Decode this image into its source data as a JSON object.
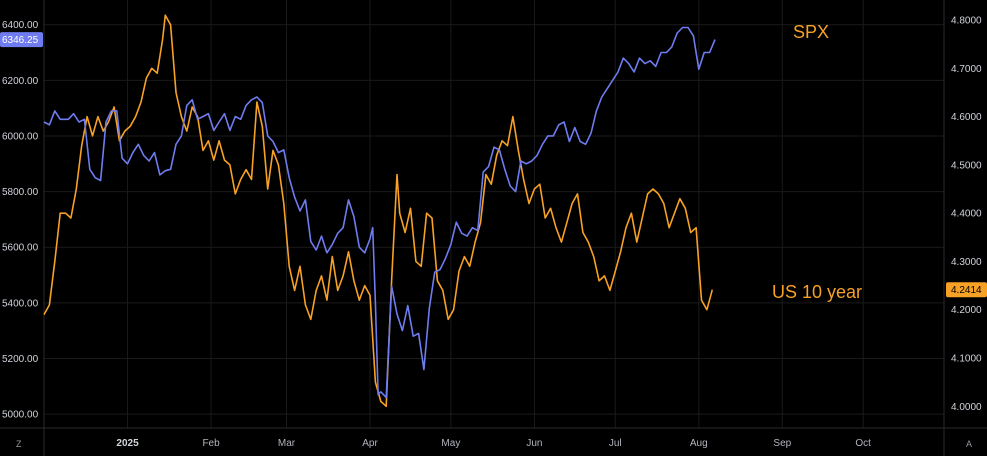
{
  "chart_data": {
    "type": "line",
    "annotations": {
      "spx": "SPX",
      "us10y": "US 10 year"
    },
    "colors": {
      "spx": "#6f7cf0",
      "us10y": "#f7a125",
      "grid": "#1a1a1a",
      "background": "#000000"
    },
    "left_axis": {
      "ylim": [
        4950,
        6460
      ],
      "ticks": [
        "6400.00",
        "6200.00",
        "6000.00",
        "5800.00",
        "5600.00",
        "5400.00",
        "5200.00",
        "5000.00"
      ],
      "tick_values": [
        6400,
        6200,
        6000,
        5800,
        5600,
        5400,
        5200,
        5000
      ]
    },
    "right_axis": {
      "ylim": [
        3.955,
        4.825
      ],
      "ticks": [
        "4.8000",
        "4.7000",
        "4.6000",
        "4.5000",
        "4.4000",
        "4.3000",
        "4.2000",
        "4.1000",
        "4.0000"
      ],
      "tick_values": [
        4.8,
        4.7,
        4.6,
        4.5,
        4.4,
        4.3,
        4.2,
        4.1,
        4.0
      ]
    },
    "x_axis": {
      "range": [
        "2024-12-01",
        "2025-10-31"
      ],
      "ticks": [
        {
          "label": "2025",
          "date": "2025-01-01",
          "bold": true
        },
        {
          "label": "Feb",
          "date": "2025-02-01"
        },
        {
          "label": "Mar",
          "date": "2025-03-01"
        },
        {
          "label": "Apr",
          "date": "2025-04-01"
        },
        {
          "label": "May",
          "date": "2025-05-01"
        },
        {
          "label": "Jun",
          "date": "2025-06-01"
        },
        {
          "label": "Jul",
          "date": "2025-07-01"
        },
        {
          "label": "Aug",
          "date": "2025-08-01"
        },
        {
          "label": "Sep",
          "date": "2025-09-01"
        },
        {
          "label": "Oct",
          "date": "2025-10-01"
        }
      ]
    },
    "last_values": {
      "spx": "6346.25",
      "us10y": "4.2414",
      "spx_value": 6346.25,
      "us10y_value": 4.2414
    },
    "series": [
      {
        "key": "spx",
        "axis": "left",
        "points": [
          [
            "2024-12-01",
            6050
          ],
          [
            "2024-12-03",
            6040
          ],
          [
            "2024-12-05",
            6090
          ],
          [
            "2024-12-07",
            6060
          ],
          [
            "2024-12-10",
            6060
          ],
          [
            "2024-12-12",
            6080
          ],
          [
            "2024-12-14",
            6050
          ],
          [
            "2024-12-16",
            6060
          ],
          [
            "2024-12-18",
            5880
          ],
          [
            "2024-12-20",
            5850
          ],
          [
            "2024-12-22",
            5840
          ],
          [
            "2024-12-24",
            6050
          ],
          [
            "2024-12-26",
            6090
          ],
          [
            "2024-12-28",
            6090
          ],
          [
            "2024-12-30",
            5920
          ],
          [
            "2025-01-01",
            5900
          ],
          [
            "2025-01-03",
            5940
          ],
          [
            "2025-01-05",
            5970
          ],
          [
            "2025-01-07",
            5930
          ],
          [
            "2025-01-09",
            5910
          ],
          [
            "2025-01-11",
            5940
          ],
          [
            "2025-01-13",
            5860
          ],
          [
            "2025-01-15",
            5875
          ],
          [
            "2025-01-17",
            5880
          ],
          [
            "2025-01-19",
            5970
          ],
          [
            "2025-01-21",
            6000
          ],
          [
            "2025-01-23",
            6110
          ],
          [
            "2025-01-25",
            6130
          ],
          [
            "2025-01-27",
            6060
          ],
          [
            "2025-01-29",
            6070
          ],
          [
            "2025-01-31",
            6080
          ],
          [
            "2025-02-02",
            6020
          ],
          [
            "2025-02-04",
            6050
          ],
          [
            "2025-02-06",
            6080
          ],
          [
            "2025-02-08",
            6020
          ],
          [
            "2025-02-10",
            6070
          ],
          [
            "2025-02-12",
            6060
          ],
          [
            "2025-02-14",
            6110
          ],
          [
            "2025-02-16",
            6130
          ],
          [
            "2025-02-18",
            6140
          ],
          [
            "2025-02-20",
            6120
          ],
          [
            "2025-02-22",
            6000
          ],
          [
            "2025-02-24",
            5980
          ],
          [
            "2025-02-26",
            5940
          ],
          [
            "2025-02-28",
            5950
          ],
          [
            "2025-03-02",
            5850
          ],
          [
            "2025-03-04",
            5780
          ],
          [
            "2025-03-06",
            5730
          ],
          [
            "2025-03-08",
            5770
          ],
          [
            "2025-03-10",
            5620
          ],
          [
            "2025-03-12",
            5590
          ],
          [
            "2025-03-14",
            5640
          ],
          [
            "2025-03-16",
            5580
          ],
          [
            "2025-03-18",
            5610
          ],
          [
            "2025-03-20",
            5650
          ],
          [
            "2025-03-22",
            5670
          ],
          [
            "2025-03-24",
            5770
          ],
          [
            "2025-03-26",
            5710
          ],
          [
            "2025-03-28",
            5600
          ],
          [
            "2025-03-30",
            5580
          ],
          [
            "2025-04-01",
            5630
          ],
          [
            "2025-04-02",
            5670
          ],
          [
            "2025-04-03",
            5400
          ],
          [
            "2025-04-04",
            5070
          ],
          [
            "2025-04-05",
            5080
          ],
          [
            "2025-04-07",
            5060
          ],
          [
            "2025-04-09",
            5460
          ],
          [
            "2025-04-11",
            5360
          ],
          [
            "2025-04-13",
            5300
          ],
          [
            "2025-04-15",
            5390
          ],
          [
            "2025-04-17",
            5280
          ],
          [
            "2025-04-19",
            5290
          ],
          [
            "2025-04-21",
            5160
          ],
          [
            "2025-04-23",
            5380
          ],
          [
            "2025-04-25",
            5510
          ],
          [
            "2025-04-27",
            5520
          ],
          [
            "2025-04-29",
            5560
          ],
          [
            "2025-05-01",
            5610
          ],
          [
            "2025-05-03",
            5690
          ],
          [
            "2025-05-05",
            5650
          ],
          [
            "2025-05-07",
            5640
          ],
          [
            "2025-05-09",
            5670
          ],
          [
            "2025-05-11",
            5660
          ],
          [
            "2025-05-13",
            5870
          ],
          [
            "2025-05-15",
            5890
          ],
          [
            "2025-05-17",
            5960
          ],
          [
            "2025-05-19",
            5950
          ],
          [
            "2025-05-21",
            5880
          ],
          [
            "2025-05-23",
            5820
          ],
          [
            "2025-05-25",
            5800
          ],
          [
            "2025-05-27",
            5910
          ],
          [
            "2025-05-29",
            5900
          ],
          [
            "2025-05-31",
            5910
          ],
          [
            "2025-06-02",
            5930
          ],
          [
            "2025-06-04",
            5970
          ],
          [
            "2025-06-06",
            6000
          ],
          [
            "2025-06-08",
            6000
          ],
          [
            "2025-06-10",
            6040
          ],
          [
            "2025-06-12",
            6050
          ],
          [
            "2025-06-14",
            5980
          ],
          [
            "2025-06-16",
            6030
          ],
          [
            "2025-06-18",
            5980
          ],
          [
            "2025-06-20",
            5970
          ],
          [
            "2025-06-22",
            6010
          ],
          [
            "2025-06-24",
            6090
          ],
          [
            "2025-06-26",
            6140
          ],
          [
            "2025-06-28",
            6170
          ],
          [
            "2025-06-30",
            6200
          ],
          [
            "2025-07-02",
            6230
          ],
          [
            "2025-07-04",
            6280
          ],
          [
            "2025-07-06",
            6260
          ],
          [
            "2025-07-08",
            6230
          ],
          [
            "2025-07-10",
            6280
          ],
          [
            "2025-07-12",
            6260
          ],
          [
            "2025-07-14",
            6270
          ],
          [
            "2025-07-16",
            6250
          ],
          [
            "2025-07-18",
            6300
          ],
          [
            "2025-07-20",
            6300
          ],
          [
            "2025-07-22",
            6320
          ],
          [
            "2025-07-24",
            6370
          ],
          [
            "2025-07-26",
            6390
          ],
          [
            "2025-07-28",
            6390
          ],
          [
            "2025-07-30",
            6360
          ],
          [
            "2025-08-01",
            6240
          ],
          [
            "2025-08-03",
            6300
          ],
          [
            "2025-08-05",
            6300
          ],
          [
            "2025-08-07",
            6346.25
          ]
        ]
      },
      {
        "key": "us10y",
        "axis": "right",
        "points": [
          [
            "2024-12-01",
            4.19
          ],
          [
            "2024-12-03",
            4.21
          ],
          [
            "2024-12-05",
            4.3
          ],
          [
            "2024-12-07",
            4.4
          ],
          [
            "2024-12-09",
            4.4
          ],
          [
            "2024-12-11",
            4.39
          ],
          [
            "2024-12-13",
            4.45
          ],
          [
            "2024-12-15",
            4.54
          ],
          [
            "2024-12-17",
            4.6
          ],
          [
            "2024-12-19",
            4.56
          ],
          [
            "2024-12-21",
            4.6
          ],
          [
            "2024-12-23",
            4.57
          ],
          [
            "2024-12-25",
            4.59
          ],
          [
            "2024-12-27",
            4.62
          ],
          [
            "2024-12-29",
            4.55
          ],
          [
            "2024-12-31",
            4.57
          ],
          [
            "2025-01-02",
            4.58
          ],
          [
            "2025-01-04",
            4.6
          ],
          [
            "2025-01-06",
            4.63
          ],
          [
            "2025-01-08",
            4.68
          ],
          [
            "2025-01-10",
            4.7
          ],
          [
            "2025-01-12",
            4.69
          ],
          [
            "2025-01-14",
            4.76
          ],
          [
            "2025-01-15",
            4.81
          ],
          [
            "2025-01-17",
            4.79
          ],
          [
            "2025-01-19",
            4.65
          ],
          [
            "2025-01-21",
            4.6
          ],
          [
            "2025-01-23",
            4.57
          ],
          [
            "2025-01-25",
            4.62
          ],
          [
            "2025-01-27",
            4.6
          ],
          [
            "2025-01-29",
            4.53
          ],
          [
            "2025-01-31",
            4.55
          ],
          [
            "2025-02-02",
            4.51
          ],
          [
            "2025-02-04",
            4.55
          ],
          [
            "2025-02-06",
            4.51
          ],
          [
            "2025-02-08",
            4.5
          ],
          [
            "2025-02-10",
            4.44
          ],
          [
            "2025-02-12",
            4.47
          ],
          [
            "2025-02-14",
            4.49
          ],
          [
            "2025-02-16",
            4.47
          ],
          [
            "2025-02-18",
            4.63
          ],
          [
            "2025-02-20",
            4.58
          ],
          [
            "2025-02-22",
            4.45
          ],
          [
            "2025-02-24",
            4.53
          ],
          [
            "2025-02-26",
            4.5
          ],
          [
            "2025-02-28",
            4.42
          ],
          [
            "2025-03-02",
            4.29
          ],
          [
            "2025-03-04",
            4.24
          ],
          [
            "2025-03-06",
            4.29
          ],
          [
            "2025-03-08",
            4.21
          ],
          [
            "2025-03-10",
            4.18
          ],
          [
            "2025-03-12",
            4.24
          ],
          [
            "2025-03-14",
            4.27
          ],
          [
            "2025-03-16",
            4.22
          ],
          [
            "2025-03-18",
            4.31
          ],
          [
            "2025-03-20",
            4.24
          ],
          [
            "2025-03-22",
            4.27
          ],
          [
            "2025-03-24",
            4.32
          ],
          [
            "2025-03-26",
            4.26
          ],
          [
            "2025-03-28",
            4.22
          ],
          [
            "2025-03-30",
            4.25
          ],
          [
            "2025-04-01",
            4.23
          ],
          [
            "2025-04-03",
            4.05
          ],
          [
            "2025-04-05",
            4.01
          ],
          [
            "2025-04-07",
            4.0
          ],
          [
            "2025-04-09",
            4.26
          ],
          [
            "2025-04-11",
            4.48
          ],
          [
            "2025-04-12",
            4.4
          ],
          [
            "2025-04-14",
            4.36
          ],
          [
            "2025-04-16",
            4.41
          ],
          [
            "2025-04-18",
            4.3
          ],
          [
            "2025-04-20",
            4.29
          ],
          [
            "2025-04-22",
            4.4
          ],
          [
            "2025-04-24",
            4.39
          ],
          [
            "2025-04-26",
            4.26
          ],
          [
            "2025-04-28",
            4.24
          ],
          [
            "2025-04-30",
            4.18
          ],
          [
            "2025-05-02",
            4.2
          ],
          [
            "2025-05-04",
            4.28
          ],
          [
            "2025-05-06",
            4.31
          ],
          [
            "2025-05-08",
            4.29
          ],
          [
            "2025-05-10",
            4.34
          ],
          [
            "2025-05-12",
            4.38
          ],
          [
            "2025-05-14",
            4.48
          ],
          [
            "2025-05-16",
            4.46
          ],
          [
            "2025-05-18",
            4.52
          ],
          [
            "2025-05-20",
            4.55
          ],
          [
            "2025-05-22",
            4.54
          ],
          [
            "2025-05-24",
            4.6
          ],
          [
            "2025-05-26",
            4.53
          ],
          [
            "2025-05-28",
            4.47
          ],
          [
            "2025-05-30",
            4.42
          ],
          [
            "2025-06-01",
            4.45
          ],
          [
            "2025-06-03",
            4.46
          ],
          [
            "2025-06-05",
            4.39
          ],
          [
            "2025-06-07",
            4.41
          ],
          [
            "2025-06-09",
            4.37
          ],
          [
            "2025-06-11",
            4.34
          ],
          [
            "2025-06-13",
            4.38
          ],
          [
            "2025-06-15",
            4.42
          ],
          [
            "2025-06-17",
            4.44
          ],
          [
            "2025-06-19",
            4.36
          ],
          [
            "2025-06-21",
            4.34
          ],
          [
            "2025-06-23",
            4.31
          ],
          [
            "2025-06-25",
            4.26
          ],
          [
            "2025-06-27",
            4.27
          ],
          [
            "2025-06-29",
            4.24
          ],
          [
            "2025-07-01",
            4.28
          ],
          [
            "2025-07-03",
            4.32
          ],
          [
            "2025-07-05",
            4.37
          ],
          [
            "2025-07-07",
            4.4
          ],
          [
            "2025-07-09",
            4.34
          ],
          [
            "2025-07-11",
            4.39
          ],
          [
            "2025-07-13",
            4.44
          ],
          [
            "2025-07-15",
            4.45
          ],
          [
            "2025-07-17",
            4.44
          ],
          [
            "2025-07-19",
            4.42
          ],
          [
            "2025-07-21",
            4.37
          ],
          [
            "2025-07-23",
            4.4
          ],
          [
            "2025-07-25",
            4.43
          ],
          [
            "2025-07-27",
            4.41
          ],
          [
            "2025-07-29",
            4.36
          ],
          [
            "2025-07-31",
            4.37
          ],
          [
            "2025-08-02",
            4.22
          ],
          [
            "2025-08-04",
            4.2
          ],
          [
            "2025-08-06",
            4.2414
          ]
        ]
      }
    ]
  },
  "ui": {
    "left_corner_label": "Z",
    "right_corner_label": "A"
  }
}
